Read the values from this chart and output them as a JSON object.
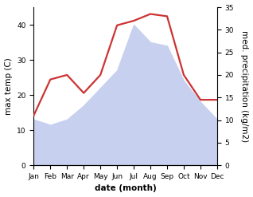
{
  "months": [
    "Jan",
    "Feb",
    "Mar",
    "Apr",
    "May",
    "Jun",
    "Jul",
    "Aug",
    "Sep",
    "Oct",
    "Nov",
    "Dec"
  ],
  "max_temp": [
    13,
    11.5,
    13,
    17,
    22,
    27,
    40,
    35,
    34,
    24,
    18,
    13
  ],
  "precipitation": [
    11,
    19,
    20,
    16,
    20,
    31,
    32,
    33.5,
    33,
    20,
    14.5,
    14.5
  ],
  "temp_fill_color": "#c8d0f0",
  "precip_color": "#cc3333",
  "left_ylim": [
    0,
    45
  ],
  "right_ylim": [
    0,
    35
  ],
  "left_yticks": [
    0,
    10,
    20,
    30,
    40
  ],
  "right_yticks": [
    0,
    5,
    10,
    15,
    20,
    25,
    30,
    35
  ],
  "ylabel_left": "max temp (C)",
  "ylabel_right": "med. precipitation (kg/m2)",
  "xlabel": "date (month)",
  "fill_alpha": 1.0,
  "bg_color": "#ffffff",
  "fontsize_ticks": 6.5,
  "fontsize_labels": 7.5,
  "precip_linewidth": 1.6
}
